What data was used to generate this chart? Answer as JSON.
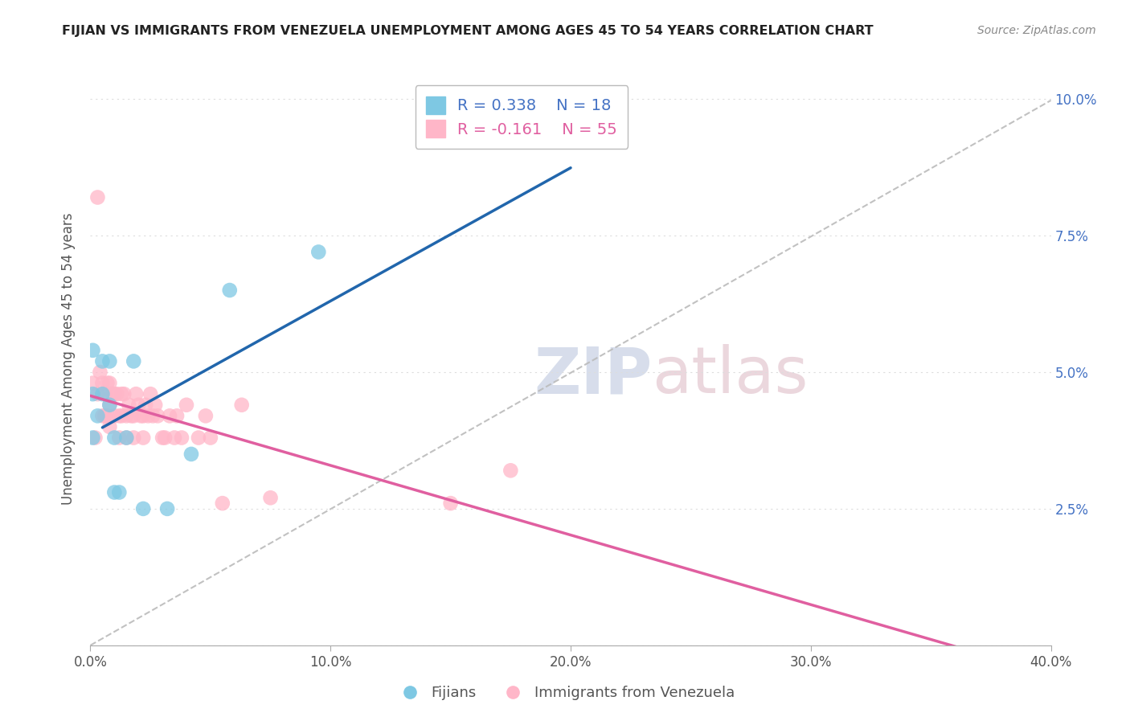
{
  "title": "FIJIAN VS IMMIGRANTS FROM VENEZUELA UNEMPLOYMENT AMONG AGES 45 TO 54 YEARS CORRELATION CHART",
  "source": "Source: ZipAtlas.com",
  "ylabel": "Unemployment Among Ages 45 to 54 years",
  "xlim": [
    0.0,
    0.4
  ],
  "ylim": [
    0.0,
    0.105
  ],
  "xticks": [
    0.0,
    0.1,
    0.2,
    0.3,
    0.4
  ],
  "xtick_labels": [
    "0.0%",
    "10.0%",
    "20.0%",
    "30.0%",
    "40.0%"
  ],
  "yticks": [
    0.0,
    0.025,
    0.05,
    0.075,
    0.1
  ],
  "ytick_labels": [
    "",
    "2.5%",
    "5.0%",
    "7.5%",
    "10.0%"
  ],
  "watermark_zip": "ZIP",
  "watermark_atlas": "atlas",
  "legend_fijian_R": 0.338,
  "legend_fijian_N": 18,
  "legend_venezuela_R": -0.161,
  "legend_venezuela_N": 55,
  "fijian_color": "#7ec8e3",
  "venezuela_color": "#ffb6c8",
  "fijian_line_color": "#2166ac",
  "venezuela_line_color": "#e05fa0",
  "trend_line_color": "#bbbbbb",
  "background_color": "#ffffff",
  "grid_color": "#dddddd",
  "fijian_x": [
    0.001,
    0.001,
    0.001,
    0.003,
    0.005,
    0.005,
    0.008,
    0.008,
    0.01,
    0.01,
    0.012,
    0.015,
    0.018,
    0.022,
    0.032,
    0.042,
    0.058,
    0.095
  ],
  "fijian_y": [
    0.054,
    0.046,
    0.038,
    0.042,
    0.052,
    0.046,
    0.052,
    0.044,
    0.038,
    0.028,
    0.028,
    0.038,
    0.052,
    0.025,
    0.025,
    0.035,
    0.065,
    0.072
  ],
  "venezuela_x": [
    0.001,
    0.002,
    0.003,
    0.003,
    0.004,
    0.005,
    0.005,
    0.006,
    0.006,
    0.007,
    0.007,
    0.008,
    0.008,
    0.008,
    0.009,
    0.01,
    0.01,
    0.011,
    0.012,
    0.012,
    0.013,
    0.013,
    0.014,
    0.015,
    0.015,
    0.016,
    0.017,
    0.018,
    0.018,
    0.019,
    0.02,
    0.021,
    0.022,
    0.022,
    0.023,
    0.024,
    0.025,
    0.026,
    0.027,
    0.028,
    0.03,
    0.031,
    0.033,
    0.035,
    0.036,
    0.038,
    0.04,
    0.045,
    0.048,
    0.05,
    0.055,
    0.063,
    0.075,
    0.15,
    0.175
  ],
  "venezuela_y": [
    0.048,
    0.038,
    0.082,
    0.046,
    0.05,
    0.048,
    0.042,
    0.046,
    0.042,
    0.048,
    0.042,
    0.048,
    0.044,
    0.04,
    0.046,
    0.046,
    0.042,
    0.046,
    0.042,
    0.038,
    0.046,
    0.042,
    0.046,
    0.042,
    0.038,
    0.044,
    0.042,
    0.038,
    0.042,
    0.046,
    0.044,
    0.042,
    0.042,
    0.038,
    0.044,
    0.042,
    0.046,
    0.042,
    0.044,
    0.042,
    0.038,
    0.038,
    0.042,
    0.038,
    0.042,
    0.038,
    0.044,
    0.038,
    0.042,
    0.038,
    0.026,
    0.044,
    0.027,
    0.026,
    0.032
  ]
}
